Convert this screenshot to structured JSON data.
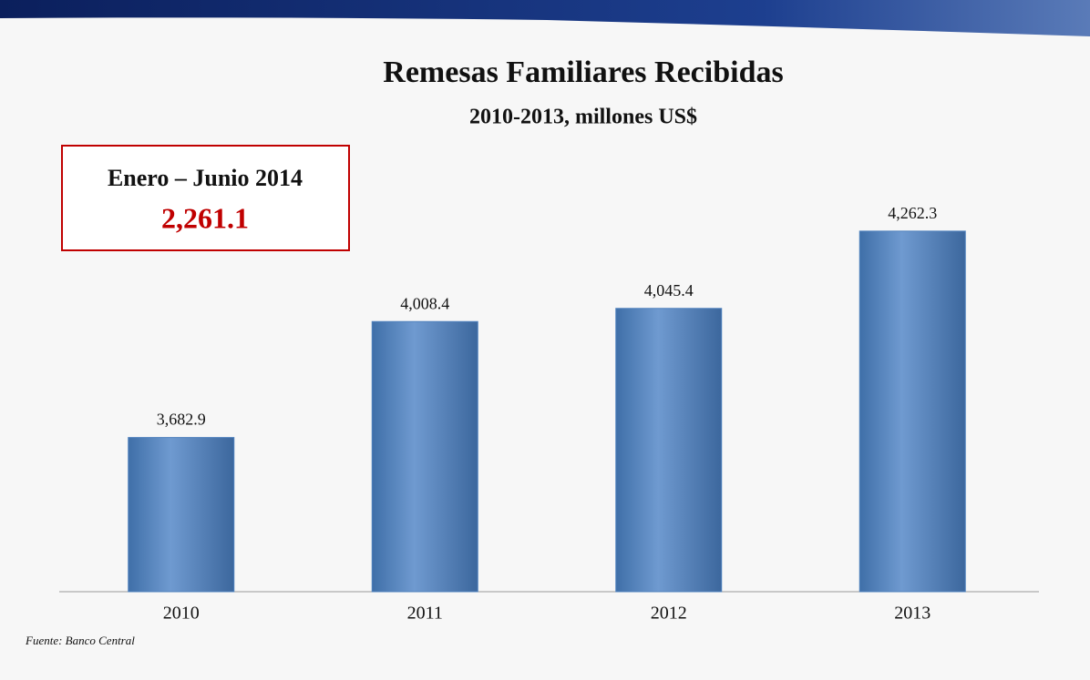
{
  "chart_data": {
    "type": "bar",
    "title": "Remesas Familiares Recibidas",
    "subtitle": "2010-2013, millones US$",
    "categories": [
      "2010",
      "2011",
      "2012",
      "2013"
    ],
    "values": [
      3682.9,
      4008.4,
      4045.4,
      4262.3
    ],
    "value_labels": [
      "3,682.9",
      "4,008.4",
      "4,045.4",
      "4,262.3"
    ],
    "color": "#4f81bd",
    "ylim": [
      3250,
      4400
    ],
    "annotation": {
      "title": "Enero – Junio 2014",
      "value": "2,261.1"
    },
    "source": "Fuente: Banco Central"
  }
}
